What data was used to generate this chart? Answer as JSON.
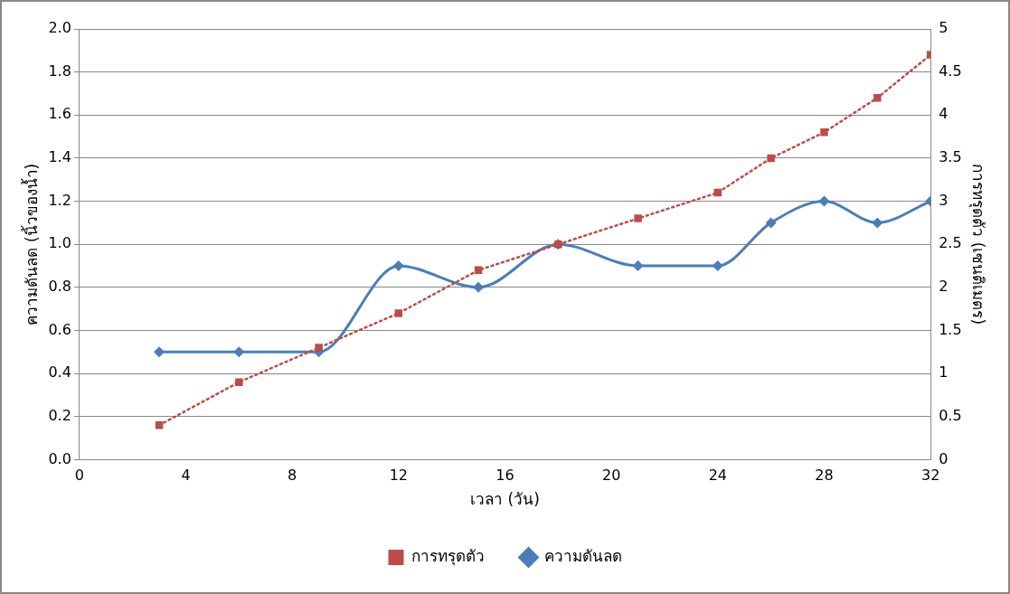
{
  "chart_data": {
    "type": "line",
    "xlabel": "เวลา (วัน)",
    "ylabel": "ความดันลด (นิ้วของน้ำ)",
    "y2label": "การทรุดตัว (เซนติเมตร)",
    "x": [
      3,
      6,
      9,
      12,
      15,
      18,
      21,
      24,
      26,
      28,
      30,
      32
    ],
    "series": [
      {
        "name": "ความดันลด",
        "color": "#4a7ebb",
        "marker": "diamond",
        "line_style": "solid",
        "values": [
          0.5,
          0.5,
          0.5,
          0.9,
          0.8,
          1.0,
          0.9,
          0.9,
          1.1,
          1.2,
          1.1,
          1.2
        ]
      },
      {
        "name": "การทรุดตัว",
        "color": "#be4b48",
        "marker": "square",
        "line_style": "dotted",
        "axis": "y2",
        "values": [
          0.4,
          0.9,
          1.3,
          1.7,
          2.2,
          2.5,
          2.8,
          3.1,
          3.5,
          3.8,
          4.2,
          4.7
        ]
      }
    ],
    "xlim": [
      0,
      32
    ],
    "xticks": [
      0,
      4,
      8,
      12,
      16,
      20,
      24,
      28,
      32
    ],
    "ylim": [
      0,
      2
    ],
    "yticks": [
      {
        "value": 0,
        "label": "0.0"
      },
      {
        "value": 0.2,
        "label": "0.2"
      },
      {
        "value": 0.4,
        "label": "0.4"
      },
      {
        "value": 0.6,
        "label": "0.6"
      },
      {
        "value": 0.8,
        "label": "0.8"
      },
      {
        "value": 1,
        "label": "1.0"
      },
      {
        "value": 1.2,
        "label": "1.2"
      },
      {
        "value": 1.4,
        "label": "1.4"
      },
      {
        "value": 1.6,
        "label": "1.6"
      },
      {
        "value": 1.8,
        "label": "1.8"
      },
      {
        "value": 2,
        "label": "2.0"
      }
    ],
    "y2lim": [
      0,
      5
    ],
    "y2ticks": [
      0,
      0.5,
      1,
      1.5,
      2,
      2.5,
      3,
      3.5,
      4,
      4.5,
      5
    ],
    "grid": "y",
    "legend": "bottom"
  }
}
